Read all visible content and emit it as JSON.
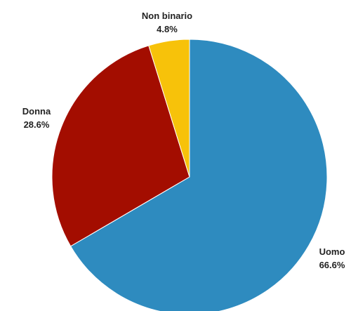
{
  "chart_data": {
    "type": "pie",
    "slices": [
      {
        "label": "Uomo",
        "value": 66.6,
        "value_label": "66.6%",
        "color": "#2e8bbf"
      },
      {
        "label": "Donna",
        "value": 28.6,
        "value_label": "28.6%",
        "color": "#a30d00"
      },
      {
        "label": "Non binario",
        "value": 4.8,
        "value_label": "4.8%",
        "color": "#f7c20a"
      }
    ],
    "start": "top",
    "direction": "clockwise"
  }
}
